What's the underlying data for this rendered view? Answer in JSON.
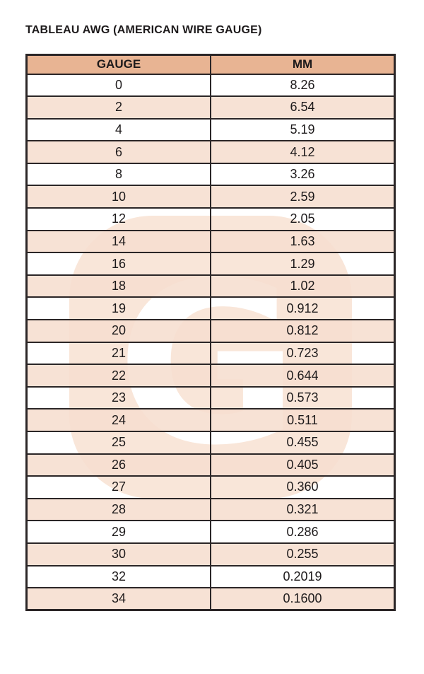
{
  "title": "TABLEAU AWG (AMERICAN WIRE GAUGE)",
  "table": {
    "columns": [
      "GAUGE",
      "MM"
    ],
    "rows": [
      [
        "0",
        "8.26"
      ],
      [
        "2",
        "6.54"
      ],
      [
        "4",
        "5.19"
      ],
      [
        "6",
        "4.12"
      ],
      [
        "8",
        "3.26"
      ],
      [
        "10",
        "2.59"
      ],
      [
        "12",
        "2.05"
      ],
      [
        "14",
        "1.63"
      ],
      [
        "16",
        "1.29"
      ],
      [
        "18",
        "1.02"
      ],
      [
        "19",
        "0.912"
      ],
      [
        "20",
        "0.812"
      ],
      [
        "21",
        "0.723"
      ],
      [
        "22",
        "0.644"
      ],
      [
        "23",
        "0.573"
      ],
      [
        "24",
        "0.511"
      ],
      [
        "25",
        "0.455"
      ],
      [
        "26",
        "0.405"
      ],
      [
        "27",
        "0.360"
      ],
      [
        "28",
        "0.321"
      ],
      [
        "29",
        "0.286"
      ],
      [
        "30",
        "0.255"
      ],
      [
        "32",
        "0.2019"
      ],
      [
        "34",
        "0.1600"
      ]
    ]
  },
  "watermark": {
    "letter": "G"
  },
  "colors": {
    "header_bg": "#e8b493",
    "row_alt_bg": "#f7e1d2",
    "row_bg": "#ffffff",
    "border": "#2b2627",
    "text": "#1d1a1b",
    "watermark_bg": "#f9e6d9",
    "watermark_letter": "#ffffff"
  }
}
